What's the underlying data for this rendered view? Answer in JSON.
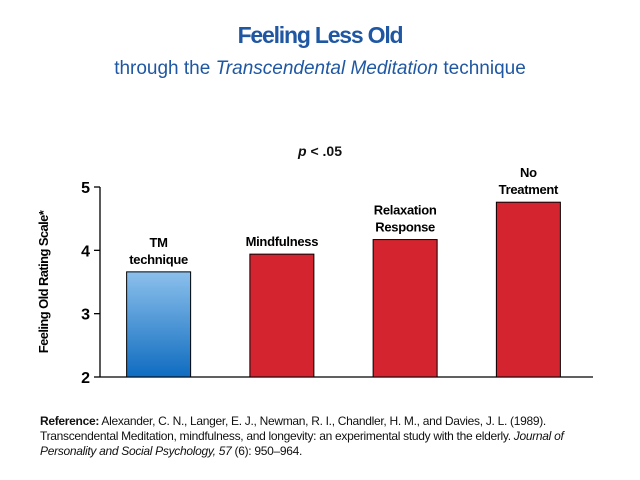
{
  "header": {
    "title": "Feeling Less Old",
    "subtitle_prefix": "through the ",
    "subtitle_italic": "Transcendental Meditation",
    "subtitle_suffix": " technique"
  },
  "significance": {
    "p": "p",
    "rest": " < .05"
  },
  "chart_data": {
    "type": "bar",
    "ylabel": "Feeling Old Rating Scale*",
    "ylim": [
      2,
      5
    ],
    "yticks": [
      2,
      3,
      4,
      5
    ],
    "grid": false,
    "categories": [
      {
        "lines": [
          "TM",
          "technique"
        ]
      },
      {
        "lines": [
          "Mindfulness"
        ]
      },
      {
        "lines": [
          "Relaxation",
          "Response"
        ]
      },
      {
        "lines": [
          "No",
          "Treatment"
        ]
      }
    ],
    "values": [
      3.66,
      3.94,
      4.17,
      4.76
    ],
    "colors": [
      "#2f86d0",
      "#d42430",
      "#d42430",
      "#d42430"
    ]
  },
  "reference": {
    "lead": "Reference:",
    "text1": " Alexander, C. N., Langer, E. J., Newman, R. I., Chandler, H. M., and Davies, J. L. (1989). Transcendental Meditation, mindfulness, and longevity: an experimental study with the elderly. ",
    "journal": "Journal of Personality and Social Psychology, 57",
    "text2": " (6): 950–964."
  }
}
